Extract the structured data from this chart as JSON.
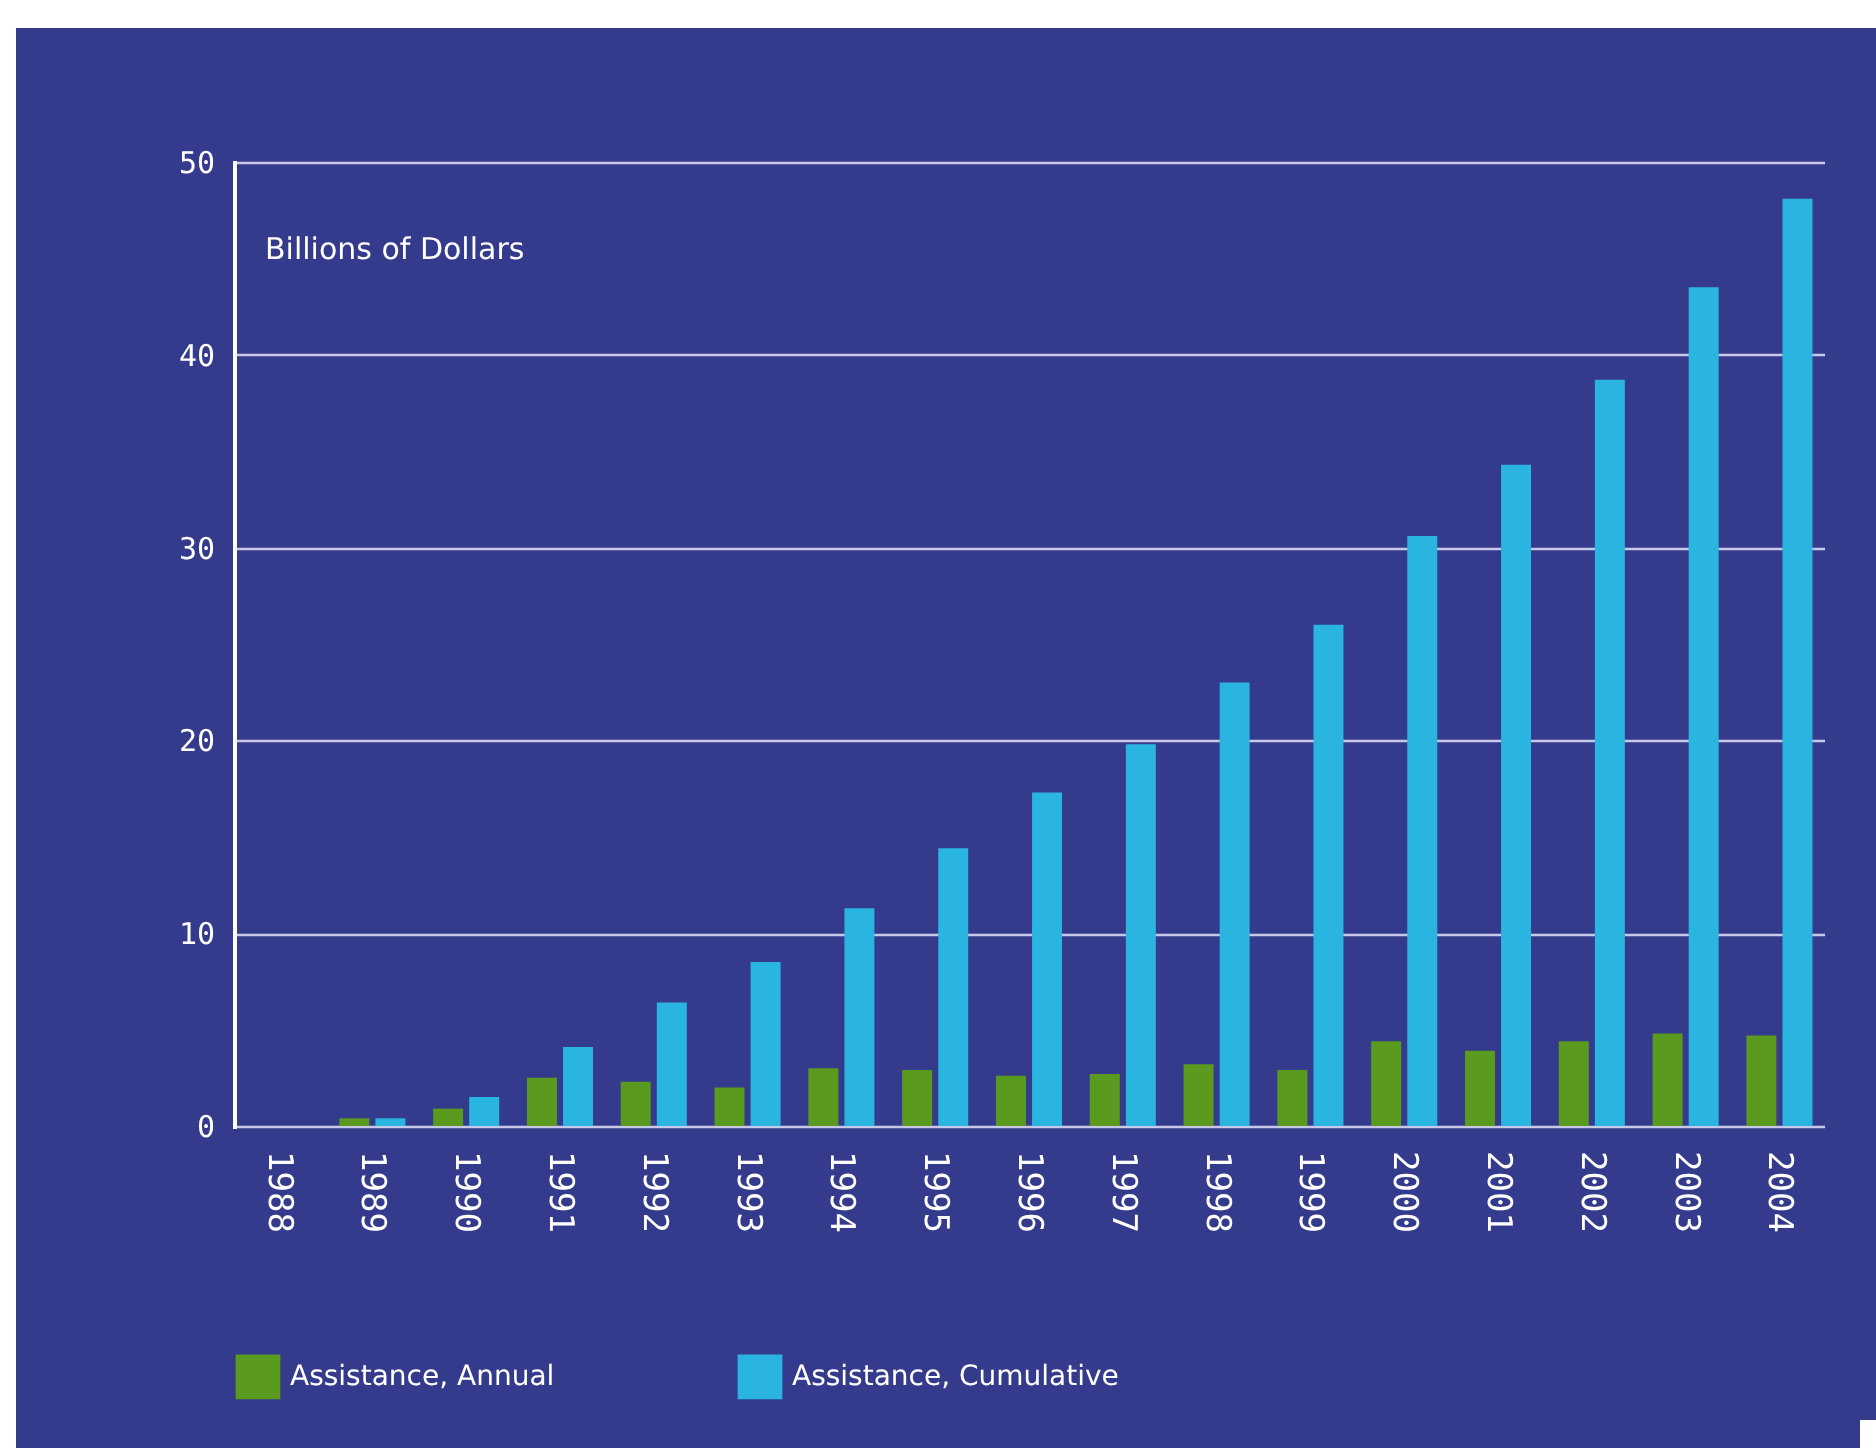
{
  "chart_data": {
    "type": "bar",
    "ylabel": "Billions of Dollars",
    "categories": [
      "1988",
      "1989",
      "1990",
      "1991",
      "1992",
      "1993",
      "1994",
      "1995",
      "1996",
      "1997",
      "1998",
      "1999",
      "2000",
      "2001",
      "2002",
      "2003",
      "2004"
    ],
    "series": [
      {
        "name": "Assistance, Annual",
        "color": "#5a9a1e",
        "values": [
          0,
          0.4,
          0.9,
          2.5,
          2.3,
          2.0,
          3.0,
          2.9,
          2.6,
          2.7,
          3.2,
          2.9,
          4.4,
          3.9,
          4.4,
          4.8,
          4.7
        ]
      },
      {
        "name": "Assistance, Cumulative",
        "color": "#2ab4e0",
        "values": [
          0,
          0.4,
          1.5,
          4.1,
          6.4,
          8.5,
          11.3,
          14.4,
          17.3,
          19.8,
          23.0,
          26.0,
          30.6,
          34.3,
          38.7,
          43.5,
          48.1
        ]
      }
    ],
    "ylim": [
      0,
      50
    ],
    "yticks": [
      0,
      10,
      20,
      30,
      40,
      50
    ],
    "grid": "y",
    "legend": "bottom"
  }
}
